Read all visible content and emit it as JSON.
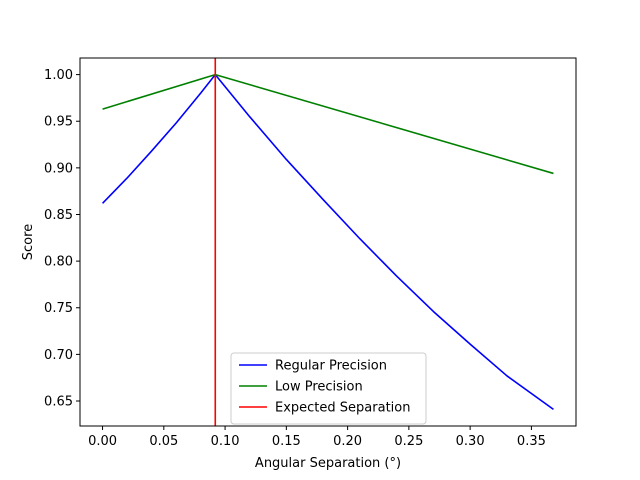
{
  "chart_data": {
    "type": "line",
    "title": "",
    "xlabel": "Angular Separation (°)",
    "ylabel": "Score",
    "xlim": [
      -0.0184,
      0.3864
    ],
    "ylim": [
      0.6232,
      1.0178
    ],
    "xticks": [
      0.0,
      0.05,
      0.1,
      0.15,
      0.2,
      0.25,
      0.3,
      0.35
    ],
    "xtick_labels": [
      "0.00",
      "0.05",
      "0.10",
      "0.15",
      "0.20",
      "0.25",
      "0.30",
      "0.35"
    ],
    "yticks": [
      0.65,
      0.7,
      0.75,
      0.8,
      0.85,
      0.9,
      0.95,
      1.0
    ],
    "ytick_labels": [
      "0.65",
      "0.70",
      "0.75",
      "0.80",
      "0.85",
      "0.90",
      "0.95",
      "1.00"
    ],
    "grid": false,
    "legend_position": "lower-center",
    "series": [
      {
        "name": "Regular Precision",
        "color": "#0000ff",
        "x": [
          0.0,
          0.02,
          0.04,
          0.06,
          0.08,
          0.092,
          0.12,
          0.15,
          0.18,
          0.21,
          0.24,
          0.27,
          0.3,
          0.33,
          0.368
        ],
        "y": [
          0.862,
          0.889,
          0.918,
          0.948,
          0.98,
          1.0,
          0.955,
          0.909,
          0.866,
          0.824,
          0.784,
          0.746,
          0.711,
          0.677,
          0.641
        ]
      },
      {
        "name": "Low Precision",
        "color": "#008000",
        "x": [
          0.0,
          0.092,
          0.368
        ],
        "y": [
          0.963,
          1.0,
          0.894
        ]
      },
      {
        "name": "Expected Separation",
        "color": "#ff0000",
        "kind": "vline",
        "x": 0.092
      }
    ]
  }
}
